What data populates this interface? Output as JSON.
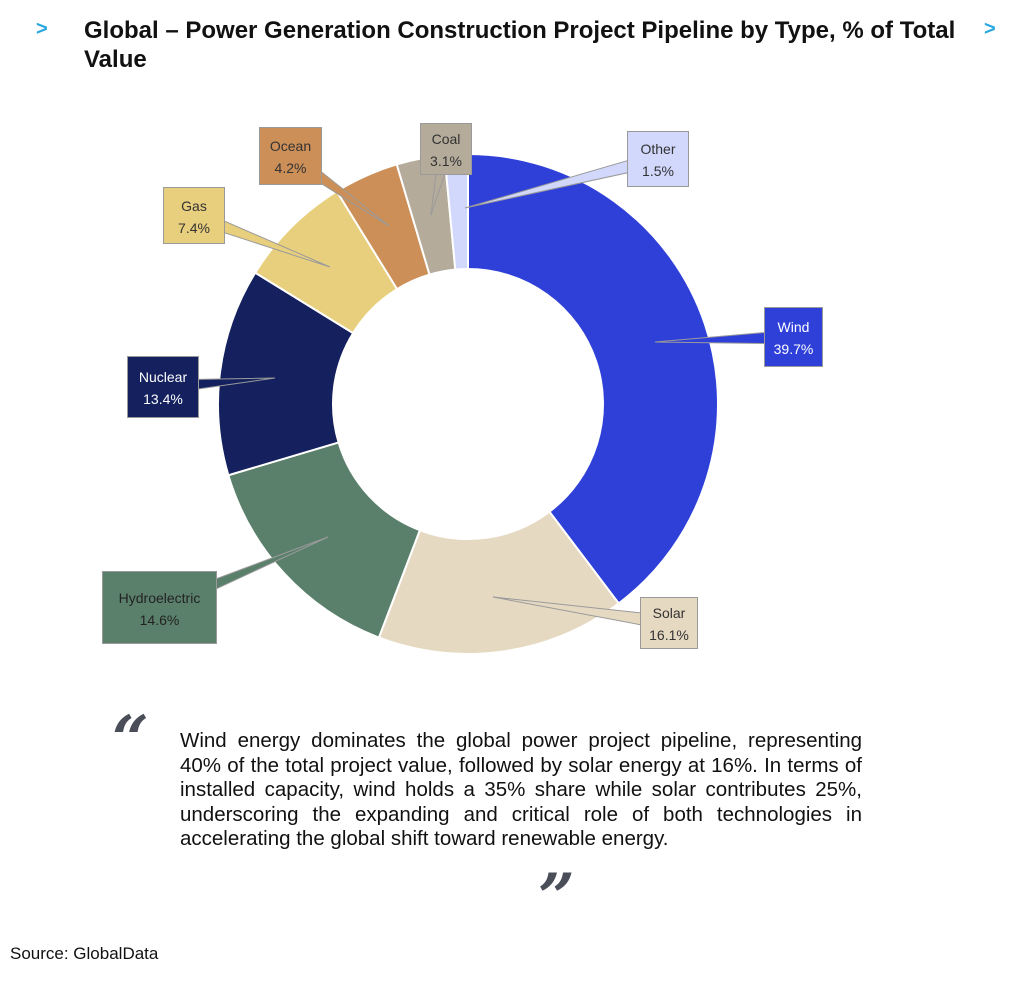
{
  "header": {
    "title": "Global – Power Generation Construction Project Pipeline by Type, % of Total Value",
    "chevron_icon": "chevron-right-icon",
    "chevron_color": "#2aa7e0"
  },
  "chart_data": {
    "type": "pie",
    "title": "Global – Power Generation Construction Project Pipeline by Type, % of Total Value",
    "donut": true,
    "categories": [
      "Wind",
      "Solar",
      "Hydroelectric",
      "Nuclear",
      "Gas",
      "Ocean",
      "Coal",
      "Other"
    ],
    "values": [
      39.7,
      16.1,
      14.6,
      13.4,
      7.4,
      4.2,
      3.1,
      1.5
    ],
    "value_labels": [
      "39.7%",
      "16.1%",
      "14.6%",
      "13.4%",
      "7.4%",
      "4.2%",
      "3.1%",
      "1.5%"
    ],
    "colors": [
      "#2e40d8",
      "#e6d9c2",
      "#5a806c",
      "#14215e",
      "#e8cf7e",
      "#cc8f58",
      "#b4ab9b",
      "#d1d8fb"
    ],
    "label_text_colors": [
      "#ffffff",
      "#333333",
      "#222222",
      "#ffffff",
      "#333333",
      "#333333",
      "#333333",
      "#333333"
    ],
    "legend": "none"
  },
  "quote": {
    "text": "Wind energy dominates the global power project pipeline, representing 40% of the total project value, followed by solar energy at 16%. In terms of installed capacity, wind holds a 35% share while solar contributes 25%, underscoring the expanding and critical role of both technologies in accelerating the global shift toward renewable energy.",
    "open_mark": "“",
    "close_mark": "”"
  },
  "source": "Source: GlobalData"
}
